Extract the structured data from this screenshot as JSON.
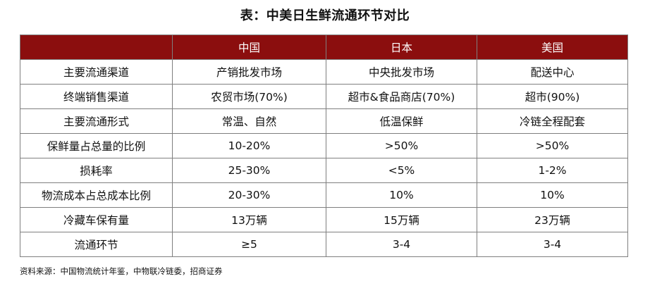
{
  "title": "表：中美日生鲜流通环节对比",
  "colors": {
    "header_bg": "#8b0e0e",
    "header_text": "#ffffff",
    "grid": "#7f7f7f"
  },
  "table": {
    "headers": [
      "",
      "中国",
      "日本",
      "美国"
    ],
    "rows": [
      [
        "主要流通渠道",
        "产销批发市场",
        "中央批发市场",
        "配送中心"
      ],
      [
        "终端销售渠道",
        "农贸市场(70%)",
        "超市&食品商店(70%)",
        "超市(90%)"
      ],
      [
        "主要流通形式",
        "常温、自然",
        "低温保鲜",
        "冷链全程配套"
      ],
      [
        "保鲜量占总量的比例",
        "10-20%",
        ">50%",
        ">50%"
      ],
      [
        "损耗率",
        "25-30%",
        "<5%",
        "1-2%"
      ],
      [
        "物流成本占总成本比例",
        "20-30%",
        "10%",
        "10%"
      ],
      [
        "冷藏车保有量",
        "13万辆",
        "15万辆",
        "23万辆"
      ],
      [
        "流通环节",
        "≥5",
        "3-4",
        "3-4"
      ]
    ]
  },
  "source": "资料来源：中国物流统计年鉴，中物联冷链委，招商证券"
}
